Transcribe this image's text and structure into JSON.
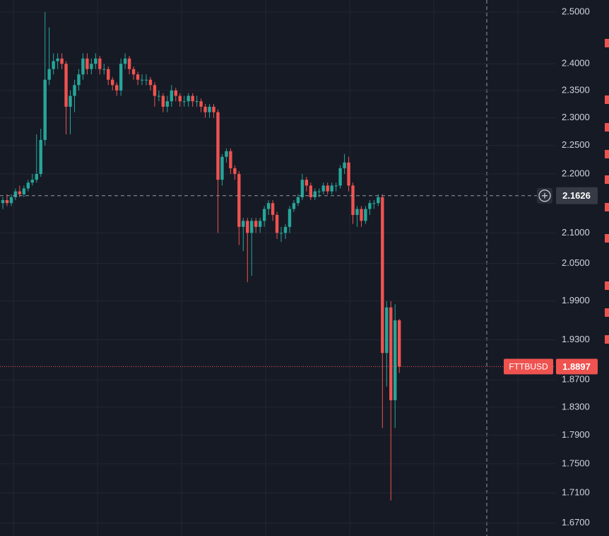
{
  "chart_data": {
    "type": "candlestick",
    "symbol": "FTTBUSD",
    "log_scale": true,
    "grid": true,
    "up_color": "#26a69a",
    "down_color": "#ef5350",
    "ylim": [
      1.653,
      2.524
    ],
    "yticks": [
      {
        "value": 2.5,
        "label": "2.5000"
      },
      {
        "value": 2.4,
        "label": "2.4000"
      },
      {
        "value": 2.35,
        "label": "2.3500"
      },
      {
        "value": 2.3,
        "label": "2.3000"
      },
      {
        "value": 2.25,
        "label": "2.2500"
      },
      {
        "value": 2.2,
        "label": "2.2000"
      },
      {
        "value": 2.1,
        "label": "2.1000"
      },
      {
        "value": 2.05,
        "label": "2.0500"
      },
      {
        "value": 1.99,
        "label": "1.9900"
      },
      {
        "value": 1.93,
        "label": "1.9300"
      },
      {
        "value": 1.87,
        "label": "1.8700"
      },
      {
        "value": 1.83,
        "label": "1.8300"
      },
      {
        "value": 1.79,
        "label": "1.7900"
      },
      {
        "value": 1.75,
        "label": "1.7500"
      },
      {
        "value": 1.71,
        "label": "1.7100"
      },
      {
        "value": 1.67,
        "label": "1.6700"
      }
    ],
    "crosshair_price": 2.1626,
    "open": [
      2.15,
      2.155,
      2.15,
      2.16,
      2.17,
      2.165,
      2.175,
      2.185,
      2.19,
      2.2,
      2.26,
      2.37,
      2.39,
      2.405,
      2.41,
      2.4,
      2.32,
      2.34,
      2.36,
      2.38,
      2.41,
      2.39,
      2.4,
      2.41,
      2.39,
      2.39,
      2.37,
      2.36,
      2.35,
      2.4,
      2.41,
      2.39,
      2.38,
      2.37,
      2.37,
      2.37,
      2.36,
      2.34,
      2.34,
      2.32,
      2.33,
      2.35,
      2.34,
      2.33,
      2.33,
      2.34,
      2.33,
      2.33,
      2.32,
      2.31,
      2.32,
      2.31,
      2.19,
      2.23,
      2.24,
      2.21,
      2.2,
      2.11,
      2.12,
      2.1,
      2.12,
      2.11,
      2.12,
      2.14,
      2.15,
      2.13,
      2.1,
      2.1,
      2.11,
      2.14,
      2.15,
      2.16,
      2.19,
      2.18,
      2.16,
      2.17,
      2.17,
      2.18,
      2.17,
      2.18,
      2.18,
      2.21,
      2.22,
      2.18,
      2.13,
      2.14,
      2.12,
      2.14,
      2.15,
      2.15,
      2.16,
      1.91,
      1.98,
      1.84,
      1.96
    ],
    "high": [
      2.16,
      2.165,
      2.165,
      2.175,
      2.18,
      2.18,
      2.19,
      2.2,
      2.27,
      2.28,
      2.5,
      2.47,
      2.42,
      2.42,
      2.42,
      2.405,
      2.35,
      2.37,
      2.39,
      2.42,
      2.42,
      2.41,
      2.42,
      2.415,
      2.4,
      2.395,
      2.375,
      2.365,
      2.41,
      2.42,
      2.415,
      2.395,
      2.385,
      2.38,
      2.38,
      2.375,
      2.365,
      2.35,
      2.345,
      2.34,
      2.36,
      2.355,
      2.345,
      2.34,
      2.345,
      2.345,
      2.34,
      2.335,
      2.325,
      2.325,
      2.325,
      2.315,
      2.235,
      2.245,
      2.245,
      2.215,
      2.205,
      2.125,
      2.125,
      2.125,
      2.125,
      2.125,
      2.145,
      2.155,
      2.155,
      2.135,
      2.11,
      2.115,
      2.145,
      2.155,
      2.165,
      2.2,
      2.195,
      2.185,
      2.175,
      2.175,
      2.185,
      2.185,
      2.185,
      2.185,
      2.215,
      2.235,
      2.23,
      2.185,
      2.145,
      2.145,
      2.145,
      2.155,
      2.155,
      2.165,
      2.165,
      1.99,
      1.99,
      1.985,
      1.962
    ],
    "low": [
      2.14,
      2.145,
      2.145,
      2.155,
      2.16,
      2.16,
      2.17,
      2.18,
      2.185,
      2.195,
      2.25,
      2.36,
      2.38,
      2.39,
      2.39,
      2.27,
      2.27,
      2.31,
      2.35,
      2.37,
      2.38,
      2.38,
      2.39,
      2.38,
      2.38,
      2.36,
      2.35,
      2.34,
      2.34,
      2.39,
      2.38,
      2.37,
      2.36,
      2.36,
      2.36,
      2.35,
      2.32,
      2.33,
      2.31,
      2.31,
      2.32,
      2.33,
      2.32,
      2.32,
      2.32,
      2.32,
      2.32,
      2.31,
      2.3,
      2.3,
      2.3,
      2.1,
      2.18,
      2.22,
      2.2,
      2.19,
      2.08,
      2.07,
      2.02,
      2.03,
      2.1,
      2.1,
      2.11,
      2.13,
      2.12,
      2.09,
      2.085,
      2.09,
      2.1,
      2.135,
      2.145,
      2.155,
      2.17,
      2.155,
      2.155,
      2.16,
      2.165,
      2.165,
      2.165,
      2.17,
      2.175,
      2.2,
      2.17,
      2.115,
      2.11,
      2.11,
      2.115,
      2.13,
      2.14,
      2.145,
      1.8,
      1.86,
      1.7,
      1.8,
      1.88
    ],
    "close": [
      2.155,
      2.15,
      2.16,
      2.17,
      2.165,
      2.175,
      2.185,
      2.19,
      2.2,
      2.26,
      2.37,
      2.39,
      2.405,
      2.41,
      2.4,
      2.32,
      2.34,
      2.36,
      2.38,
      2.41,
      2.39,
      2.4,
      2.41,
      2.39,
      2.39,
      2.37,
      2.36,
      2.35,
      2.4,
      2.41,
      2.39,
      2.38,
      2.37,
      2.37,
      2.37,
      2.36,
      2.34,
      2.34,
      2.32,
      2.33,
      2.35,
      2.34,
      2.33,
      2.33,
      2.34,
      2.33,
      2.33,
      2.32,
      2.31,
      2.32,
      2.31,
      2.19,
      2.23,
      2.24,
      2.21,
      2.2,
      2.11,
      2.12,
      2.1,
      2.12,
      2.11,
      2.12,
      2.14,
      2.15,
      2.13,
      2.1,
      2.1,
      2.11,
      2.14,
      2.15,
      2.16,
      2.19,
      2.18,
      2.16,
      2.17,
      2.17,
      2.18,
      2.17,
      2.18,
      2.18,
      2.21,
      2.22,
      2.18,
      2.13,
      2.14,
      2.12,
      2.14,
      2.15,
      2.15,
      2.16,
      1.91,
      1.98,
      1.84,
      1.96,
      1.8897
    ]
  }
}
